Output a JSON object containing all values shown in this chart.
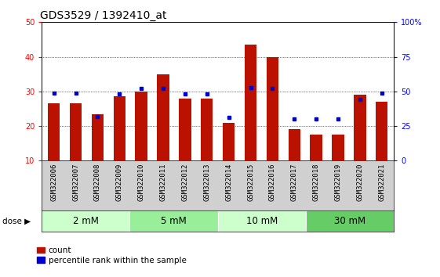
{
  "title": "GDS3529 / 1392410_at",
  "samples": [
    "GSM322006",
    "GSM322007",
    "GSM322008",
    "GSM322009",
    "GSM322010",
    "GSM322011",
    "GSM322012",
    "GSM322013",
    "GSM322014",
    "GSM322015",
    "GSM322016",
    "GSM322017",
    "GSM322018",
    "GSM322019",
    "GSM322020",
    "GSM322021"
  ],
  "count_values": [
    26.5,
    26.5,
    23.5,
    28.5,
    30.0,
    35.0,
    28.0,
    28.0,
    21.0,
    43.5,
    40.0,
    19.0,
    17.5,
    17.5,
    29.0,
    27.0
  ],
  "percentile_rank": [
    49,
    49,
    32,
    48,
    52,
    52,
    48,
    48,
    31,
    53,
    52,
    30,
    30,
    30,
    44,
    49
  ],
  "doses": [
    {
      "label": "2 mM",
      "start": 0,
      "end": 4,
      "color": "#ccffcc"
    },
    {
      "label": "5 mM",
      "start": 4,
      "end": 8,
      "color": "#99ee99"
    },
    {
      "label": "10 mM",
      "start": 8,
      "end": 12,
      "color": "#ccffcc"
    },
    {
      "label": "30 mM",
      "start": 12,
      "end": 16,
      "color": "#66cc66"
    }
  ],
  "ylim_left": [
    10,
    50
  ],
  "ylim_right": [
    0,
    100
  ],
  "yticks_left": [
    10,
    20,
    30,
    40,
    50
  ],
  "yticks_right": [
    0,
    25,
    50,
    75,
    100
  ],
  "bar_color": "#bb1100",
  "dot_color": "#0000cc",
  "title_fontsize": 10,
  "tick_fontsize": 7,
  "dose_fontsize": 8.5,
  "legend_fontsize": 7.5,
  "sample_label_fontsize": 6.5
}
